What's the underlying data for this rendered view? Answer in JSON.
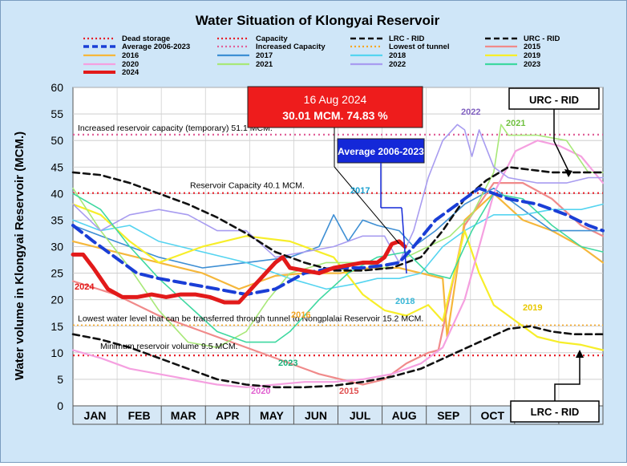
{
  "chart_data": {
    "type": "line",
    "title": "Water Situation of Klongyai Reservoir",
    "ylabel": "Water volume in Klongyai Reservoir (MCM.)",
    "xlabel": "",
    "ylim": [
      0,
      60
    ],
    "yticks": [
      "0",
      "5",
      "10",
      "15",
      "20",
      "25",
      "30",
      "35",
      "40",
      "45",
      "50",
      "55",
      "60"
    ],
    "months": [
      "JAN",
      "FEB",
      "MAR",
      "APR",
      "MAY",
      "JUN",
      "JUL",
      "AUG",
      "SEP",
      "OCT",
      "NOV",
      "DEC"
    ],
    "x_units": "day of year (1-365)",
    "grid": true,
    "legend_position": "top",
    "reference_lines": [
      {
        "key": "dead",
        "name": "Dead storage",
        "value": 9.5,
        "color": "#e8202a",
        "label": "Minimum reservoir volume 9.5 MCM."
      },
      {
        "key": "capacity",
        "name": "Capacity",
        "value": 40.1,
        "color": "#e8202a",
        "label": "Reservoir Capacity 40.1 MCM."
      },
      {
        "key": "increased",
        "name": "Increased Capacity",
        "value": 51.1,
        "color": "#e06098",
        "label": "Increased reservoir capacity (temporary) 51.1 MCM."
      },
      {
        "key": "tunnel",
        "name": "Lowest of tunnel",
        "value": 15.2,
        "color": "#f5a623",
        "label": "Lowest water level that can be transferred through tunnel to Nongplalai Reservoir 15.2 MCM."
      }
    ],
    "series": [
      {
        "name": "2015",
        "color": "#f08a8a",
        "width": 2.2,
        "dash": "",
        "x": [
          1,
          30,
          60,
          100,
          140,
          170,
          200,
          215,
          230,
          245,
          252,
          270,
          290,
          310,
          330,
          350,
          365
        ],
        "y": [
          23.5,
          21,
          17,
          13,
          9,
          6,
          4,
          5,
          8,
          10,
          10.5,
          34,
          42,
          42,
          39,
          34,
          32
        ]
      },
      {
        "name": "2016",
        "color": "#f5b73b",
        "width": 2.2,
        "dash": "",
        "x": [
          1,
          30,
          60,
          90,
          115,
          140,
          160,
          185,
          205,
          225,
          240,
          255,
          258,
          270,
          290,
          310,
          330,
          350,
          365
        ],
        "y": [
          31,
          29,
          27,
          25,
          22,
          24.5,
          25,
          25,
          26,
          26,
          25,
          24,
          13,
          35,
          40,
          35,
          33,
          30,
          27
        ]
      },
      {
        "name": "2017",
        "color": "#3e8fd4",
        "width": 1.6,
        "dash": "",
        "x": [
          1,
          30,
          60,
          90,
          120,
          150,
          170,
          180,
          190,
          200,
          210,
          225,
          235,
          250,
          270,
          290,
          310,
          330,
          350,
          365
        ],
        "y": [
          34,
          31,
          28,
          26,
          27,
          28,
          30,
          36,
          31,
          35,
          34,
          33,
          30,
          33,
          38,
          41,
          37,
          33,
          33,
          33
        ]
      },
      {
        "name": "2018",
        "color": "#55d4f0",
        "width": 1.6,
        "dash": "",
        "x": [
          1,
          20,
          40,
          60,
          90,
          120,
          150,
          175,
          195,
          210,
          225,
          240,
          255,
          270,
          290,
          310,
          330,
          350,
          365
        ],
        "y": [
          35,
          33,
          34,
          31,
          29,
          27,
          24,
          22,
          23,
          24,
          24,
          25,
          30,
          33,
          36,
          36,
          37,
          37,
          38
        ]
      },
      {
        "name": "2019",
        "color": "#f7ee2a",
        "width": 2.2,
        "dash": "",
        "x": [
          1,
          20,
          40,
          60,
          90,
          120,
          150,
          180,
          200,
          215,
          230,
          245,
          255,
          270,
          280,
          290,
          300,
          310,
          320,
          335,
          350,
          365
        ],
        "y": [
          38,
          36,
          31,
          27,
          30,
          32,
          31,
          28,
          21,
          18,
          17,
          19,
          16,
          33,
          25,
          19,
          17,
          15,
          13,
          12,
          11.5,
          10.5
        ]
      },
      {
        "name": "2020",
        "color": "#f5a0e0",
        "width": 2.2,
        "dash": "",
        "x": [
          1,
          20,
          40,
          60,
          80,
          100,
          120,
          140,
          160,
          180,
          200,
          220,
          240,
          255,
          270,
          290,
          305,
          320,
          335,
          350,
          365
        ],
        "y": [
          10.5,
          9,
          7,
          6,
          5,
          4,
          3.5,
          4,
          4.5,
          4.5,
          5,
          6,
          8,
          11,
          20,
          40,
          48,
          50,
          49,
          47,
          42
        ]
      },
      {
        "name": "2021",
        "color": "#a8e878",
        "width": 1.6,
        "dash": "",
        "x": [
          1,
          20,
          40,
          60,
          80,
          100,
          120,
          135,
          150,
          175,
          200,
          215,
          230,
          245,
          260,
          275,
          290,
          295,
          300,
          320,
          340,
          355,
          365
        ],
        "y": [
          41,
          33,
          26,
          18,
          12,
          11,
          14,
          20,
          25,
          27,
          27,
          26,
          28,
          30,
          32,
          36,
          44,
          53,
          51,
          51,
          50,
          44,
          44
        ]
      },
      {
        "name": "2022",
        "color": "#a89cf0",
        "width": 1.6,
        "dash": "",
        "x": [
          1,
          20,
          40,
          60,
          80,
          100,
          120,
          140,
          160,
          180,
          200,
          215,
          225,
          235,
          245,
          255,
          265,
          270,
          275,
          280,
          290,
          300,
          320,
          340,
          355,
          365
        ],
        "y": [
          38,
          33,
          36,
          37,
          36,
          33,
          33,
          28,
          29,
          30,
          32,
          32,
          27,
          33,
          43,
          50,
          53,
          52,
          47,
          52,
          45,
          43,
          42,
          42,
          43,
          43
        ]
      },
      {
        "name": "2023",
        "color": "#3ed8a0",
        "width": 1.6,
        "dash": "",
        "x": [
          1,
          20,
          40,
          60,
          80,
          100,
          120,
          140,
          150,
          170,
          190,
          210,
          230,
          245,
          260,
          275,
          290,
          310,
          330,
          350,
          365
        ],
        "y": [
          40,
          37,
          30,
          24,
          19,
          14,
          12,
          12,
          14,
          20,
          25,
          28,
          29,
          25,
          24,
          33,
          40,
          39,
          34,
          30,
          29
        ]
      },
      {
        "name": "URC - RID",
        "color": "#111111",
        "width": 2.6,
        "dash": "8,5",
        "x": [
          1,
          20,
          40,
          60,
          80,
          100,
          120,
          140,
          160,
          180,
          200,
          220,
          240,
          255,
          270,
          285,
          300,
          315,
          330,
          345,
          365
        ],
        "y": [
          44,
          43.5,
          42,
          40,
          38,
          35.5,
          32.5,
          29,
          27,
          25.5,
          25.5,
          26,
          28,
          33,
          39,
          42.5,
          45,
          44.5,
          44,
          44,
          44
        ]
      },
      {
        "name": "LRC - RID",
        "color": "#111111",
        "width": 2.6,
        "dash": "8,5",
        "x": [
          1,
          20,
          40,
          60,
          80,
          100,
          120,
          140,
          160,
          180,
          200,
          220,
          240,
          260,
          280,
          300,
          315,
          330,
          345,
          365
        ],
        "y": [
          13.5,
          12.5,
          11,
          9,
          7,
          5,
          4,
          3.5,
          3.5,
          3.8,
          4.5,
          5.5,
          7,
          9.5,
          12,
          14.5,
          15,
          14,
          13.5,
          13.5
        ]
      },
      {
        "name": "Average 2006-2023",
        "color": "#1a3ed6",
        "width": 4,
        "dash": "14,7",
        "x": [
          1,
          15,
          30,
          45,
          60,
          80,
          100,
          120,
          140,
          160,
          180,
          200,
          215,
          225,
          235,
          250,
          265,
          280,
          300,
          320,
          340,
          355,
          365
        ],
        "y": [
          34,
          31,
          28,
          25,
          24,
          23,
          22,
          21,
          22,
          25,
          26,
          26,
          26.5,
          27,
          30,
          35,
          38,
          41,
          39,
          38,
          36,
          34,
          33
        ]
      },
      {
        "name": "2024",
        "color": "#e21a1a",
        "width": 5,
        "dash": "",
        "x": [
          1,
          8,
          15,
          25,
          35,
          45,
          55,
          65,
          75,
          85,
          95,
          105,
          115,
          125,
          130,
          135,
          140,
          145,
          150,
          160,
          170,
          180,
          190,
          200,
          210,
          215,
          220,
          225,
          229
        ],
        "y": [
          28.5,
          28.5,
          26,
          22,
          20.5,
          20.5,
          21,
          20.5,
          21,
          21,
          20.5,
          19.5,
          19.5,
          22.5,
          24,
          25.5,
          27,
          28,
          26,
          25.5,
          25,
          26,
          26.5,
          27,
          27,
          28,
          30.5,
          31,
          30
        ]
      }
    ],
    "annotations": {
      "callout_2024": {
        "line1": "16 Aug 2024",
        "line2": "30.01 MCM. 74.83 %"
      },
      "callout_average": "Average 2006-2023",
      "urc_box": "URC - RID",
      "lrc_box": "LRC - RID",
      "year_labels": [
        "2024",
        "2016",
        "2023",
        "2020",
        "2015",
        "2017",
        "2018",
        "2019",
        "2022",
        "2021"
      ]
    },
    "legend": [
      {
        "name": "Dead storage",
        "color": "#e8202a",
        "style": "dots"
      },
      {
        "name": "Capacity",
        "color": "#e8202a",
        "style": "dots"
      },
      {
        "name": "LRC - RID",
        "color": "#111111",
        "style": "dash"
      },
      {
        "name": "URC - RID",
        "color": "#111111",
        "style": "dash"
      },
      {
        "name": "Average 2006-2023",
        "color": "#1a3ed6",
        "style": "dash"
      },
      {
        "name": "Increased Capacity",
        "color": "#e06098",
        "style": "dots"
      },
      {
        "name": "Lowest of tunnel",
        "color": "#f5a623",
        "style": "dots"
      },
      {
        "name": "2015",
        "color": "#f08a8a",
        "style": "solid"
      },
      {
        "name": "2016",
        "color": "#f5b73b",
        "style": "solid"
      },
      {
        "name": "2017",
        "color": "#3e8fd4",
        "style": "solid"
      },
      {
        "name": "2018",
        "color": "#55d4f0",
        "style": "solid"
      },
      {
        "name": "2019",
        "color": "#f7ee2a",
        "style": "solid"
      },
      {
        "name": "2020",
        "color": "#f5a0e0",
        "style": "solid"
      },
      {
        "name": "2021",
        "color": "#a8e878",
        "style": "solid"
      },
      {
        "name": "2022",
        "color": "#a89cf0",
        "style": "solid"
      },
      {
        "name": "2023",
        "color": "#3ed8a0",
        "style": "solid"
      },
      {
        "name": "2024",
        "color": "#e21a1a",
        "style": "solid"
      }
    ]
  }
}
